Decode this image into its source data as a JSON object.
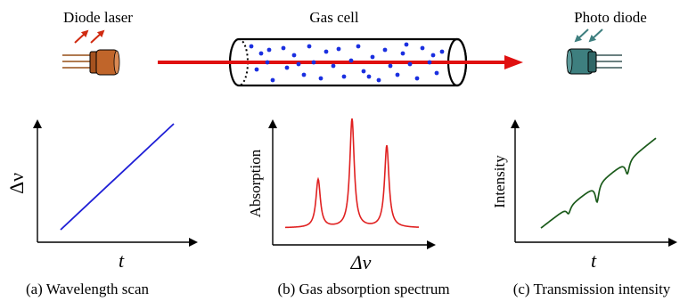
{
  "top": {
    "laser_label": "Diode laser",
    "cell_label": "Gas cell",
    "detector_label": "Photo diode"
  },
  "panels": [
    {
      "caption": "(a) Wavelength scan",
      "xlabel": "t",
      "ylabel": "Δν",
      "line_color": "#1f1fd6"
    },
    {
      "caption": "(b) Gas absorption spectrum",
      "xlabel": "Δν",
      "ylabel": "Absorption",
      "line_color": "#e02020"
    },
    {
      "caption": "(c) Transmission intensity",
      "xlabel": "t",
      "ylabel": "Intensity",
      "line_color": "#1a5a1a"
    }
  ],
  "colors": {
    "beam": "#e01010",
    "laser_body": "#c0652a",
    "detector_body": "#3e7f7f",
    "molecules": "#1a2fe0"
  }
}
